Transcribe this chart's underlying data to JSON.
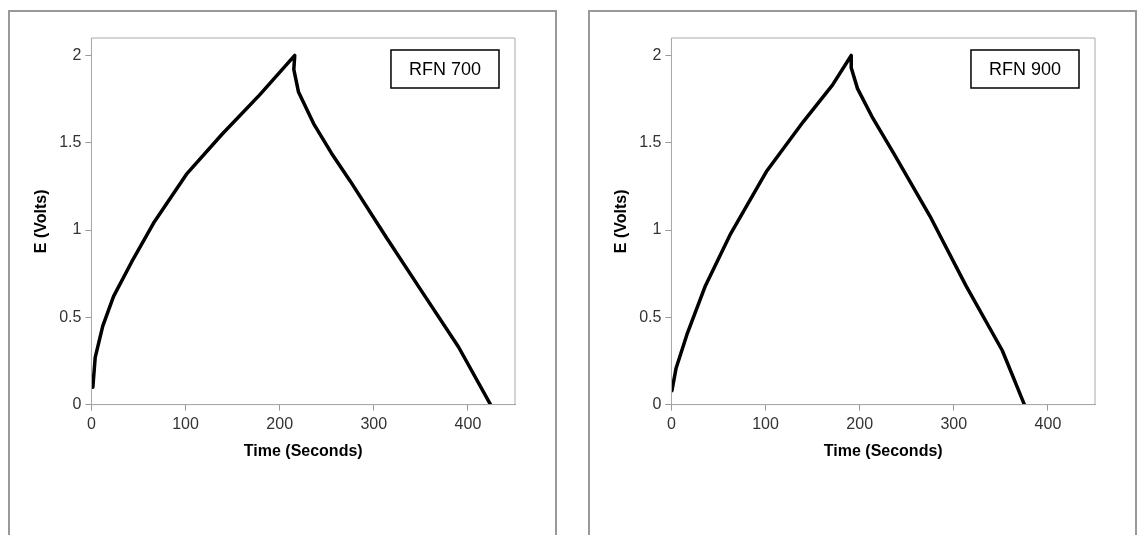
{
  "chart_data": [
    {
      "type": "line",
      "xlabel": "Time (Seconds)",
      "ylabel": "E (Volts)",
      "annotations": [
        "RFN 700"
      ],
      "xlim": [
        0,
        450
      ],
      "ylim": [
        0,
        2.1
      ],
      "xticks": [
        0,
        100,
        200,
        300,
        400
      ],
      "yticks": [
        0,
        0.5,
        1,
        1.5,
        2
      ],
      "grid": false,
      "legend": false,
      "marker": "none",
      "line_style": "solid",
      "series": [
        {
          "color": "#000000",
          "x": [
            1.5,
            4,
            12,
            23.5,
            43,
            66,
            101,
            139,
            178,
            216,
            215,
            220,
            236,
            255,
            275,
            313,
            352,
            390,
            424
          ],
          "values": [
            0.1,
            0.27,
            0.45,
            0.62,
            0.82,
            1.04,
            1.32,
            1.55,
            1.77,
            2.0,
            1.92,
            1.79,
            1.61,
            1.44,
            1.28,
            0.96,
            0.64,
            0.33,
            0
          ]
        }
      ]
    },
    {
      "type": "line",
      "xlabel": "Time (Seconds)",
      "ylabel": "E (Volts)",
      "annotations": [
        "RFN 900"
      ],
      "xlim": [
        0,
        450
      ],
      "ylim": [
        0,
        2.1
      ],
      "xticks": [
        0,
        100,
        200,
        300,
        400
      ],
      "yticks": [
        0,
        0.5,
        1,
        1.5,
        2
      ],
      "grid": false,
      "legend": false,
      "marker": "none",
      "line_style": "solid",
      "series": [
        {
          "color": "#000000",
          "x": [
            0.5,
            5,
            17,
            36,
            63,
            101.5,
            140,
            171,
            191,
            191,
            197.7,
            213,
            236,
            274.6,
            313,
            351.5,
            375
          ],
          "values": [
            0.08,
            0.21,
            0.41,
            0.68,
            0.98,
            1.34,
            1.62,
            1.83,
            2.0,
            1.93,
            1.81,
            1.65,
            1.44,
            1.08,
            0.68,
            0.31,
            0
          ]
        }
      ]
    }
  ]
}
